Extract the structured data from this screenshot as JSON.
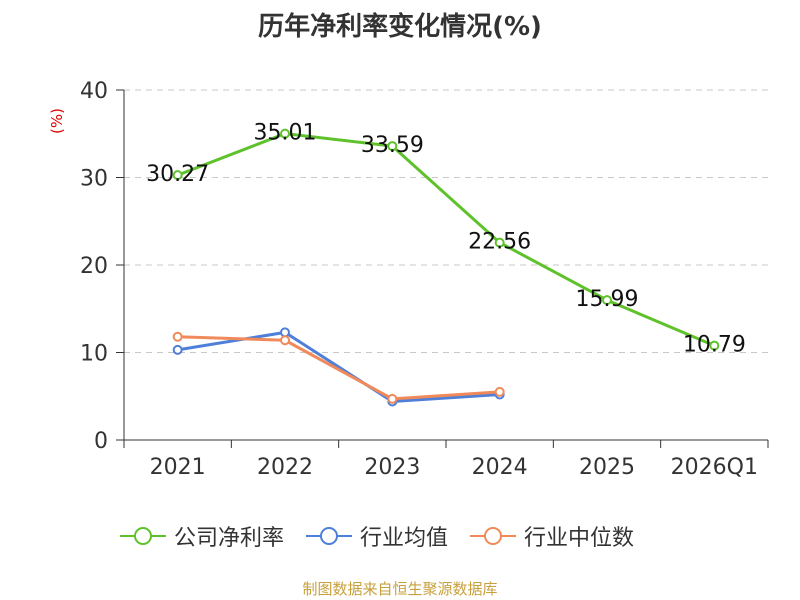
{
  "chart_data": {
    "type": "line",
    "title": "历年净利率变化情况(%)",
    "ylabel": "(%)",
    "xlabel": "",
    "ylim": [
      0,
      40
    ],
    "yticks": [
      0,
      10,
      20,
      30,
      40
    ],
    "categories": [
      "2021",
      "2022",
      "2023",
      "2024",
      "2025",
      "2026Q1"
    ],
    "series": [
      {
        "name": "公司净利率",
        "color": "#5fc22c",
        "values": [
          30.27,
          35.01,
          33.59,
          22.56,
          15.99,
          10.79
        ],
        "labels": [
          "30.27",
          "35.01",
          "33.59",
          "22.56",
          "15.99",
          "10.79"
        ]
      },
      {
        "name": "行业均值",
        "color": "#4e7fd9",
        "values": [
          10.3,
          12.3,
          4.4,
          5.2,
          null,
          null
        ]
      },
      {
        "name": "行业中位数",
        "color": "#f08a5a",
        "values": [
          11.8,
          11.4,
          4.7,
          5.5,
          null,
          null
        ]
      }
    ],
    "grid": true,
    "legend_position": "bottom"
  },
  "source": "制图数据来自恒生聚源数据库"
}
